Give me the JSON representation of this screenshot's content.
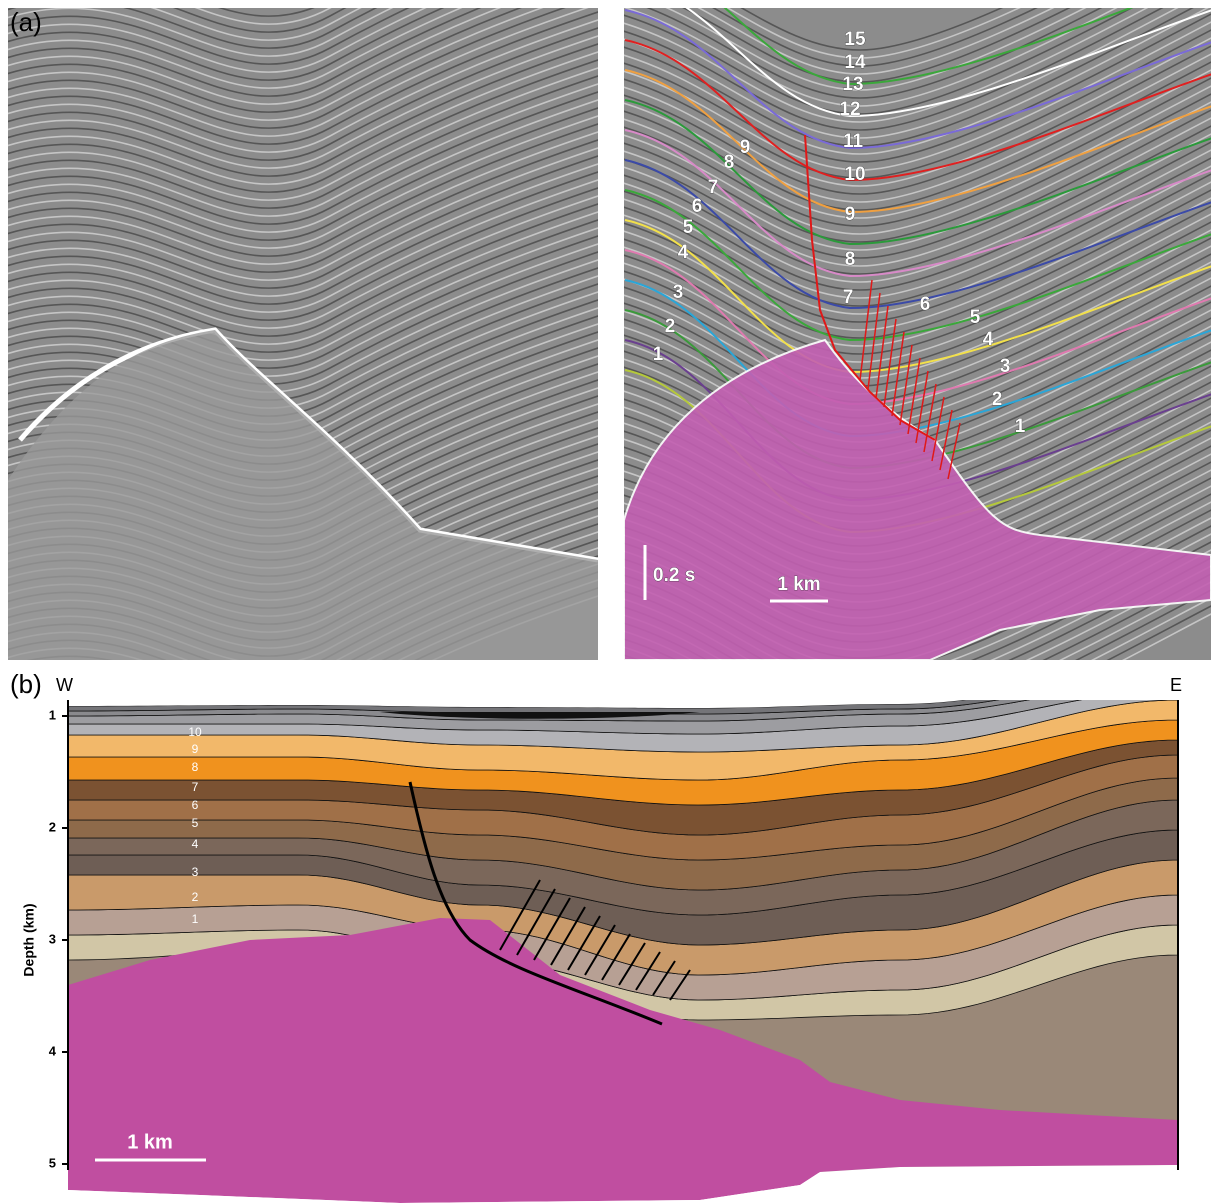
{
  "panel_a": {
    "label": "(a)",
    "horizon_labels_west": [
      "1",
      "2",
      "3",
      "4",
      "5",
      "6",
      "7",
      "8",
      "9"
    ],
    "horizon_labels_center": [
      "7",
      "8",
      "9",
      "10",
      "11",
      "12",
      "13",
      "14",
      "15"
    ],
    "horizon_labels_east": [
      "6",
      "5",
      "4",
      "3",
      "2",
      "1"
    ],
    "time_scale": "0.2 s",
    "length_scale": "1 km"
  },
  "panel_b": {
    "label": "(b)",
    "west": "W",
    "east": "E",
    "depth_axis": {
      "title": "Depth (km)",
      "ticks": [
        1,
        2,
        3,
        4,
        5
      ]
    },
    "layer_labels": [
      "1",
      "2",
      "3",
      "4",
      "5",
      "6",
      "7",
      "8",
      "9",
      "10"
    ],
    "length_scale": "1 km"
  }
}
